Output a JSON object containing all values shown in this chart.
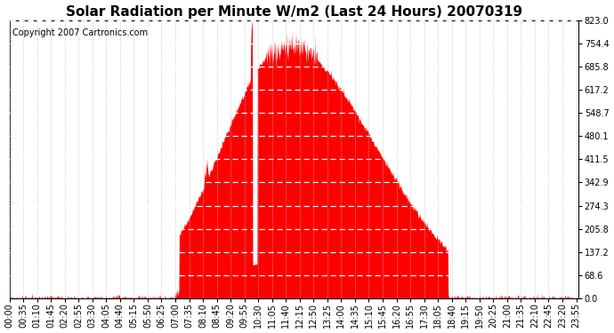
{
  "title": "Solar Radiation per Minute W/m2 (Last 24 Hours) 20070319",
  "copyright": "Copyright 2007 Cartronics.com",
  "y_ticks": [
    0.0,
    68.6,
    137.2,
    205.8,
    274.3,
    342.9,
    411.5,
    480.1,
    548.7,
    617.2,
    685.8,
    754.4,
    823.0
  ],
  "y_max": 823.0,
  "fill_color": "#FF0000",
  "background_color": "#FFFFFF",
  "plot_bg_color": "#FFFFFF",
  "grid_color_v": "#BBBBBB",
  "grid_color_h": "#FFFFFF",
  "dashed_line_color": "#FF0000",
  "title_fontsize": 11,
  "copyright_fontsize": 7,
  "tick_label_fontsize": 7,
  "n_points": 1440,
  "sunrise_minute": 430,
  "sunset_minute": 1110,
  "peak_minute": 700
}
